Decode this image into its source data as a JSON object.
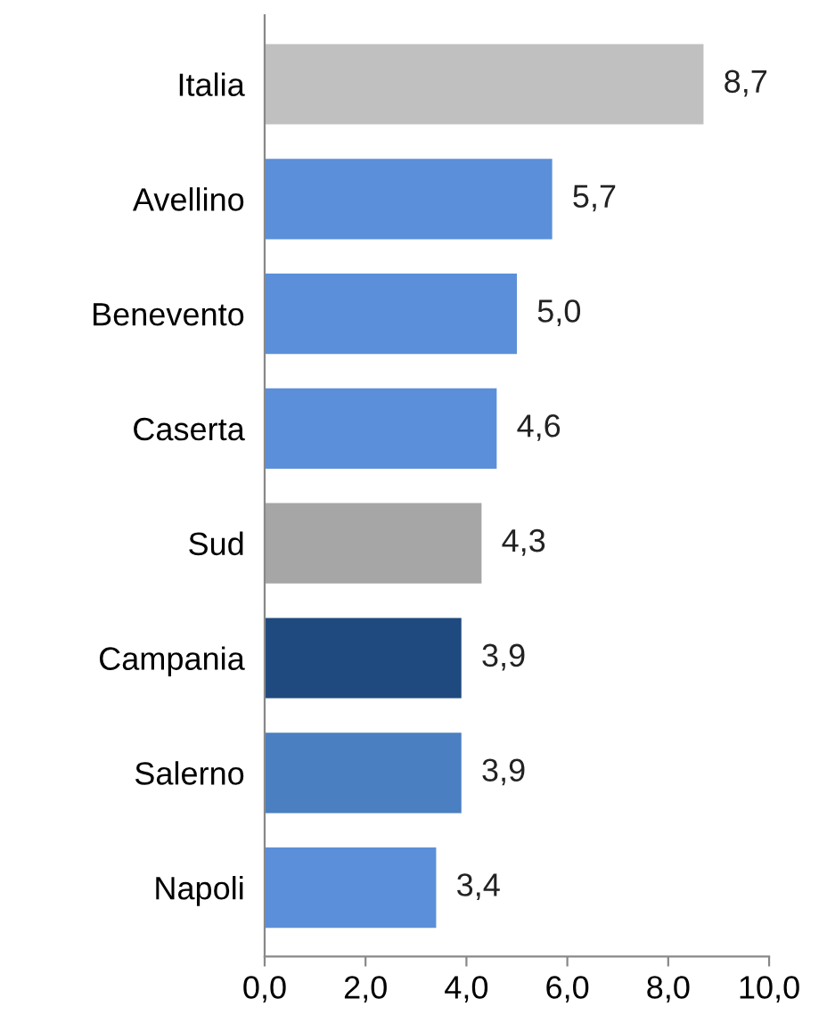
{
  "chart_data": {
    "type": "bar",
    "orientation": "horizontal",
    "categories": [
      "Italia",
      "Avellino",
      "Benevento",
      "Caserta",
      "Sud",
      "Campania",
      "Salerno",
      "Napoli"
    ],
    "values": [
      8.7,
      5.7,
      5.0,
      4.6,
      4.3,
      3.9,
      3.9,
      3.4
    ],
    "colors": [
      "#c0c0c0",
      "#5b8fd9",
      "#5b8fd9",
      "#5b8fd9",
      "#a6a6a6",
      "#1f4a7f",
      "#4a7fc1",
      "#5b8fd9"
    ],
    "value_labels": [
      "8,7",
      "5,7",
      "5,0",
      "4,6",
      "4,3",
      "3,9",
      "3,9",
      "3,4"
    ],
    "xlim": [
      0,
      10
    ],
    "xticks": [
      {
        "value": 0,
        "label": "0,0"
      },
      {
        "value": 2,
        "label": "2,0"
      },
      {
        "value": 4,
        "label": "4,0"
      },
      {
        "value": 6,
        "label": "6,0"
      },
      {
        "value": 8,
        "label": "8,0"
      },
      {
        "value": 10,
        "label": "10,0"
      }
    ],
    "grid": false,
    "legend": false
  }
}
